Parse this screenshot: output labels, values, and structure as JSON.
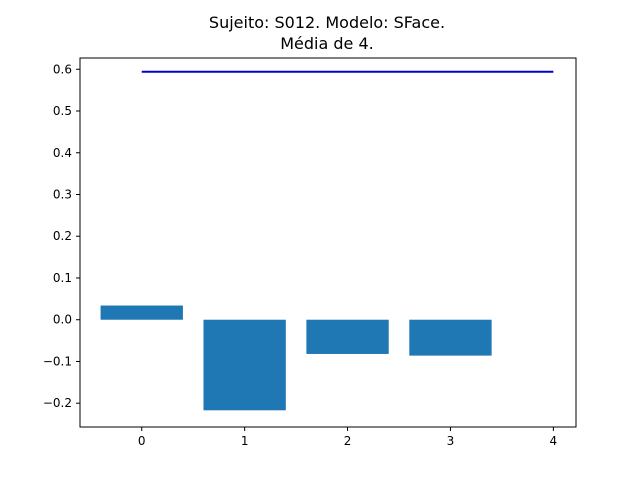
{
  "chart_data": {
    "type": "bar",
    "title_line1": "Sujeito: S012. Modelo: SFace.",
    "title_line2": "Média de 4.",
    "xlabel": "",
    "ylabel": "",
    "x_ticks": [
      "0",
      "1",
      "2",
      "3",
      "4"
    ],
    "x_tick_values": [
      0,
      1,
      2,
      3,
      4
    ],
    "y_ticks": [
      "0.6",
      "0.5",
      "0.4",
      "0.3",
      "0.2",
      "0.1",
      "0.0",
      "−0.1",
      "−0.2"
    ],
    "y_tick_values": [
      0.6,
      0.5,
      0.4,
      0.3,
      0.2,
      0.1,
      0.0,
      -0.1,
      -0.2
    ],
    "xlim": [
      -0.6,
      4.22
    ],
    "ylim": [
      -0.257,
      0.627
    ],
    "bar_width": 0.8,
    "bars": [
      {
        "x": 0,
        "value": 0.034
      },
      {
        "x": 1,
        "value": -0.217
      },
      {
        "x": 2,
        "value": -0.082
      },
      {
        "x": 3,
        "value": -0.086
      }
    ],
    "bar_color": "#1f77b4",
    "hline": {
      "y": 0.594,
      "x_from": 0,
      "x_to": 4,
      "color": "#0000cd"
    },
    "grid": false,
    "legend": "none"
  }
}
